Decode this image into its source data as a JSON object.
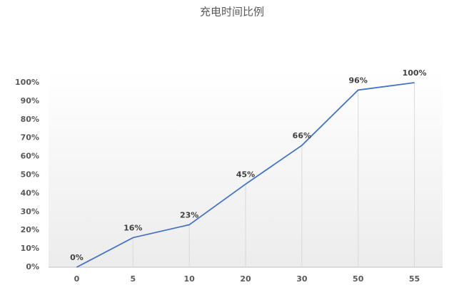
{
  "chart_data": {
    "type": "line",
    "title": "充电时间比例",
    "categories": [
      "0",
      "5",
      "10",
      "20",
      "30",
      "50",
      "55"
    ],
    "series": [
      {
        "color": "#4472c4",
        "values": [
          0,
          16,
          23,
          45,
          66,
          96,
          100
        ],
        "value_labels": [
          "0%",
          "16%",
          "23%",
          "45%",
          "66%",
          "96%",
          "100%"
        ]
      }
    ],
    "ylim": [
      0,
      100
    ],
    "yticks": [
      {
        "value": 0,
        "label": "0%"
      },
      {
        "value": 10,
        "label": "10%"
      },
      {
        "value": 20,
        "label": "20%"
      },
      {
        "value": 30,
        "label": "30%"
      },
      {
        "value": 40,
        "label": "40%"
      },
      {
        "value": 50,
        "label": "50%"
      },
      {
        "value": 60,
        "label": "60%"
      },
      {
        "value": 70,
        "label": "70%"
      },
      {
        "value": 80,
        "label": "80%"
      },
      {
        "value": 90,
        "label": "90%"
      },
      {
        "value": 100,
        "label": "100%"
      }
    ],
    "drop_lines": true
  }
}
